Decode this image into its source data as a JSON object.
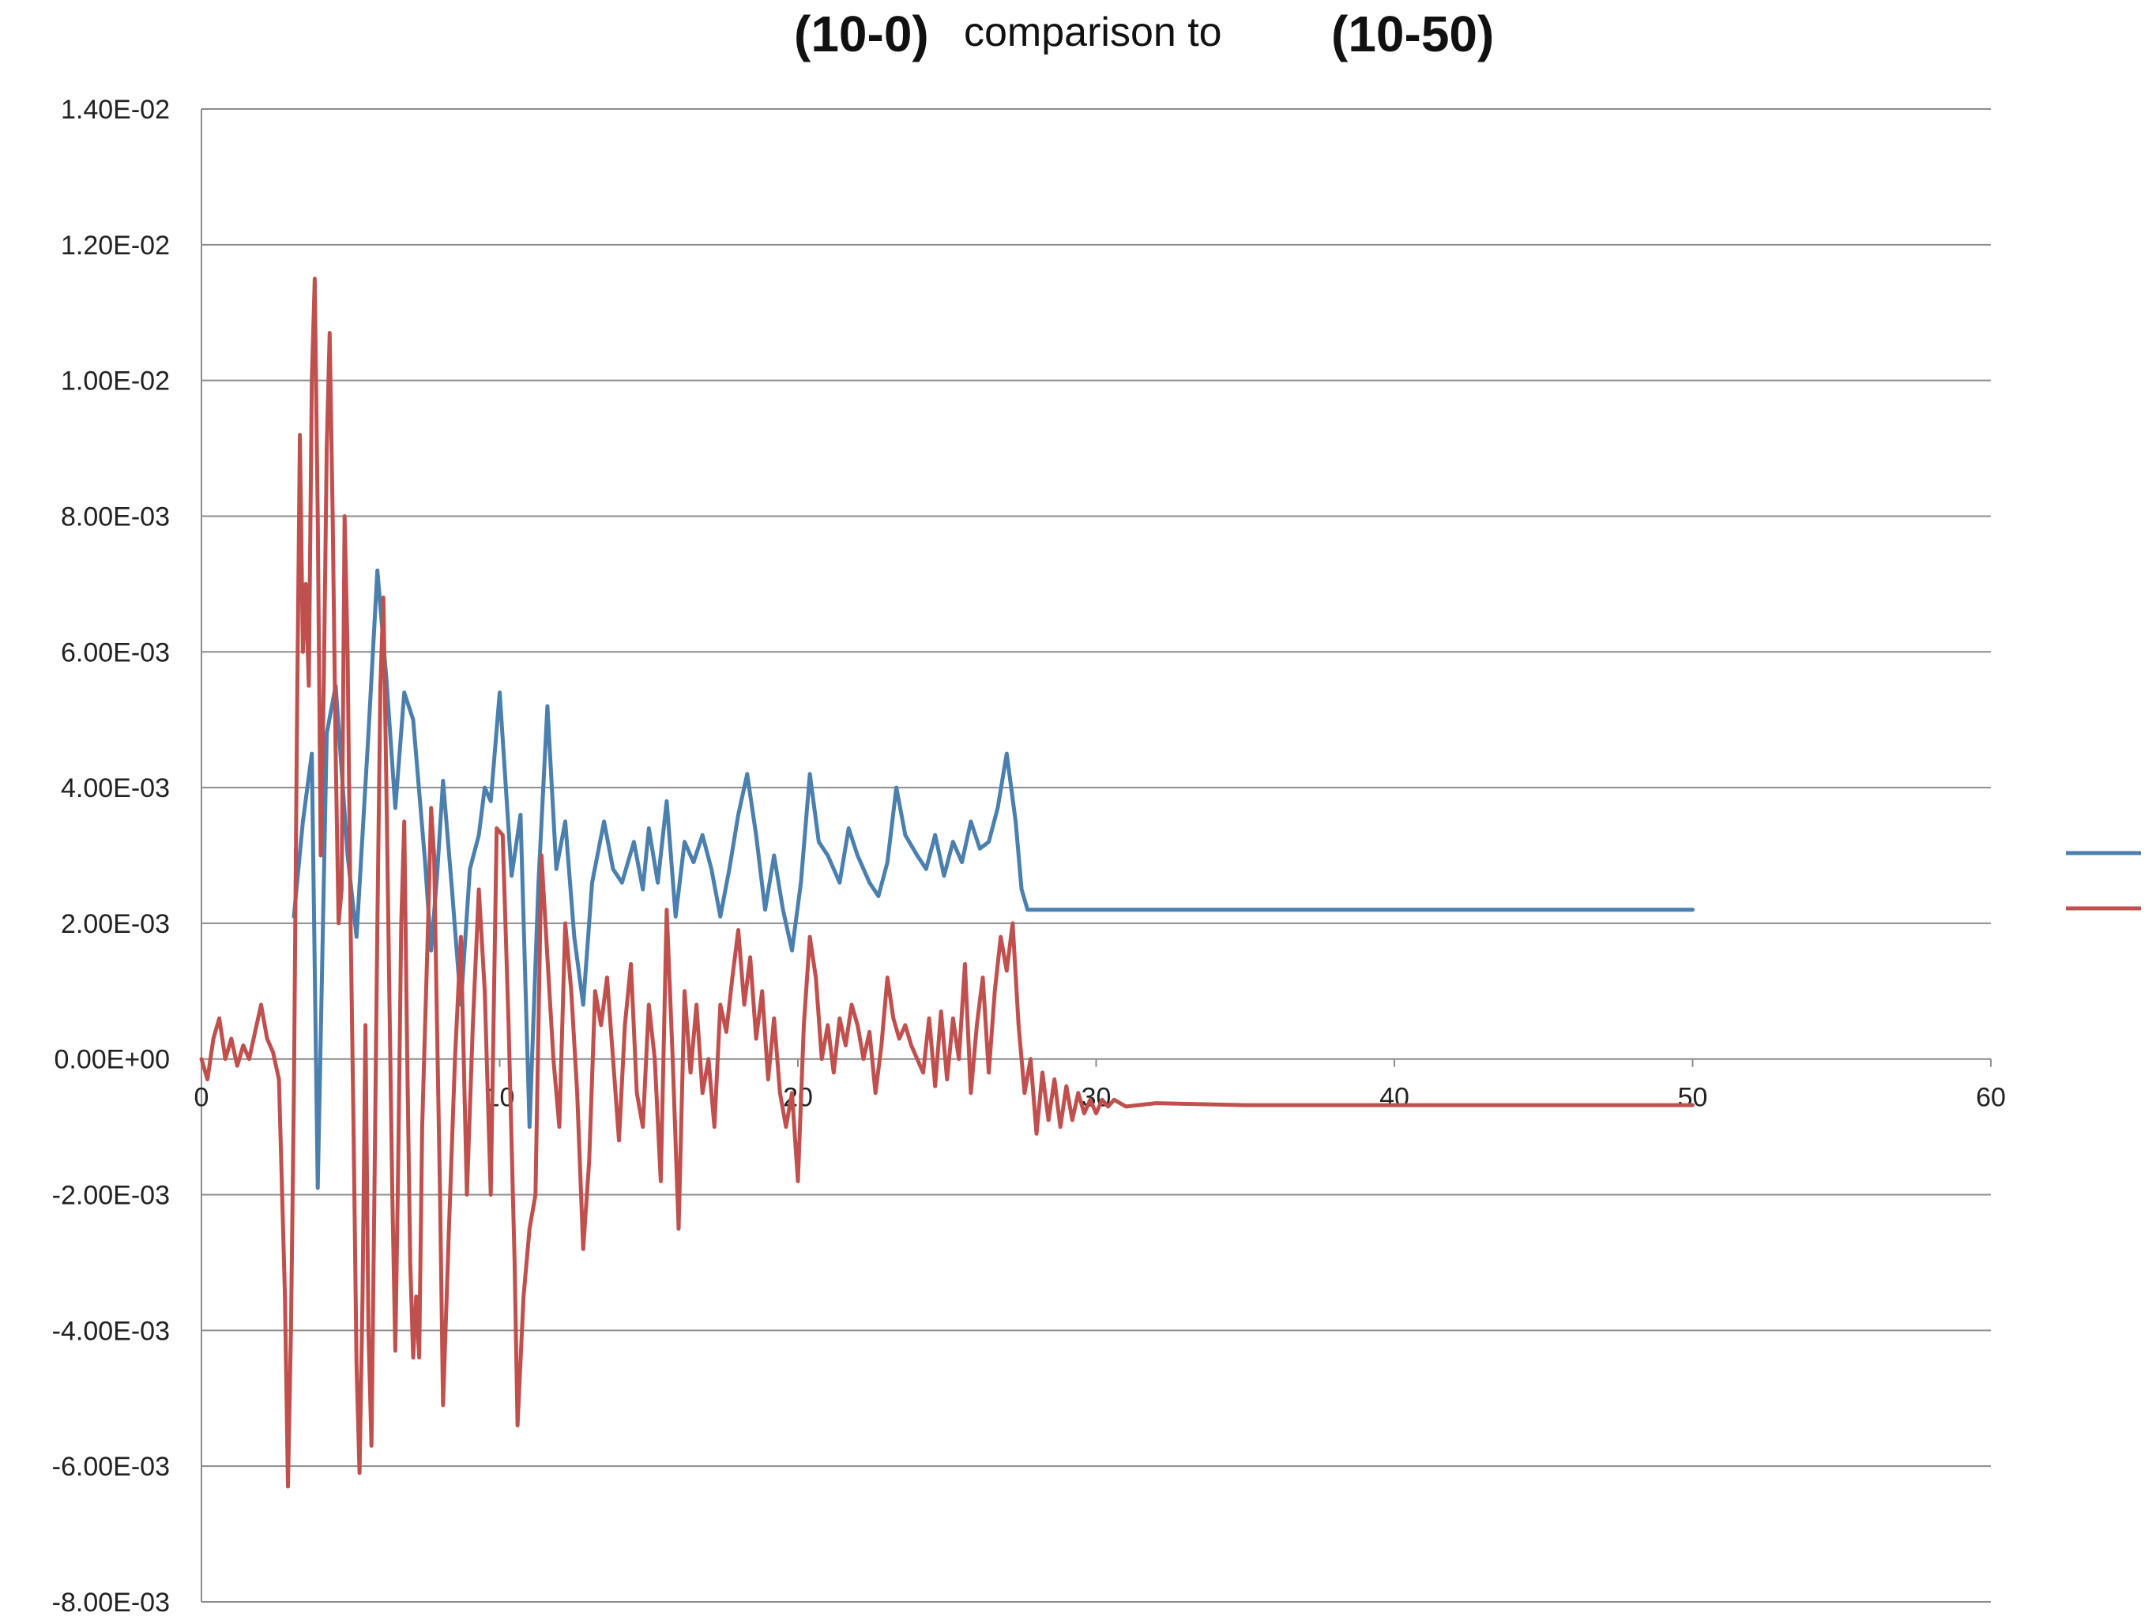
{
  "chart_data": {
    "type": "line",
    "title": {
      "part1": "(10-0)",
      "part2": "comparison to",
      "part3": "(10-50)"
    },
    "xlim": [
      0,
      60
    ],
    "ylim": [
      -0.008,
      0.014
    ],
    "x_ticks": [
      "0",
      "10",
      "20",
      "30",
      "40",
      "50",
      "60"
    ],
    "y_ticks": [
      "1.40E-02",
      "1.20E-02",
      "1.00E-02",
      "8.00E-03",
      "6.00E-03",
      "4.00E-03",
      "2.00E-03",
      "0.00E+00",
      "-2.00E-03",
      "-4.00E-03",
      "-6.00E-03",
      "-8.00E-03"
    ],
    "grid": "horizontal",
    "legend": "right",
    "series": [
      {
        "color": "#4a7fae",
        "points": [
          [
            3.1,
            0.0021
          ],
          [
            3.4,
            0.0035
          ],
          [
            3.7,
            0.0045
          ],
          [
            3.9,
            -0.0019
          ],
          [
            4.2,
            0.0048
          ],
          [
            4.5,
            0.0055
          ],
          [
            4.9,
            0.003
          ],
          [
            5.2,
            0.0018
          ],
          [
            5.6,
            0.0048
          ],
          [
            5.9,
            0.0072
          ],
          [
            6.2,
            0.0056
          ],
          [
            6.5,
            0.0037
          ],
          [
            6.8,
            0.0054
          ],
          [
            7.1,
            0.005
          ],
          [
            7.5,
            0.0029
          ],
          [
            7.7,
            0.0016
          ],
          [
            7.9,
            0.0027
          ],
          [
            8.1,
            0.0041
          ],
          [
            8.4,
            0.0025
          ],
          [
            8.7,
            0.0008
          ],
          [
            9.0,
            0.0028
          ],
          [
            9.3,
            0.0033
          ],
          [
            9.5,
            0.004
          ],
          [
            9.7,
            0.0038
          ],
          [
            10.0,
            0.0054
          ],
          [
            10.4,
            0.0027
          ],
          [
            10.7,
            0.0036
          ],
          [
            11.0,
            -0.001
          ],
          [
            11.3,
            0.0026
          ],
          [
            11.6,
            0.0052
          ],
          [
            11.9,
            0.0028
          ],
          [
            12.2,
            0.0035
          ],
          [
            12.5,
            0.0018
          ],
          [
            12.8,
            0.0008
          ],
          [
            13.1,
            0.0026
          ],
          [
            13.5,
            0.0035
          ],
          [
            13.8,
            0.0028
          ],
          [
            14.1,
            0.0026
          ],
          [
            14.5,
            0.0032
          ],
          [
            14.8,
            0.0025
          ],
          [
            15.0,
            0.0034
          ],
          [
            15.3,
            0.0026
          ],
          [
            15.6,
            0.0038
          ],
          [
            15.9,
            0.0021
          ],
          [
            16.2,
            0.0032
          ],
          [
            16.5,
            0.0029
          ],
          [
            16.8,
            0.0033
          ],
          [
            17.1,
            0.0028
          ],
          [
            17.4,
            0.0021
          ],
          [
            17.7,
            0.0028
          ],
          [
            18.0,
            0.0036
          ],
          [
            18.3,
            0.0042
          ],
          [
            18.6,
            0.0033
          ],
          [
            18.9,
            0.0022
          ],
          [
            19.2,
            0.003
          ],
          [
            19.5,
            0.0022
          ],
          [
            19.8,
            0.0016
          ],
          [
            20.1,
            0.0026
          ],
          [
            20.4,
            0.0042
          ],
          [
            20.7,
            0.0032
          ],
          [
            21.0,
            0.003
          ],
          [
            21.4,
            0.0026
          ],
          [
            21.7,
            0.0034
          ],
          [
            22.0,
            0.003
          ],
          [
            22.4,
            0.0026
          ],
          [
            22.7,
            0.0024
          ],
          [
            23.0,
            0.0029
          ],
          [
            23.3,
            0.004
          ],
          [
            23.6,
            0.0033
          ],
          [
            24.0,
            0.003
          ],
          [
            24.3,
            0.0028
          ],
          [
            24.6,
            0.0033
          ],
          [
            24.9,
            0.0027
          ],
          [
            25.2,
            0.0032
          ],
          [
            25.5,
            0.0029
          ],
          [
            25.8,
            0.0035
          ],
          [
            26.1,
            0.0031
          ],
          [
            26.4,
            0.0032
          ],
          [
            26.7,
            0.0037
          ],
          [
            27.0,
            0.0045
          ],
          [
            27.3,
            0.0035
          ],
          [
            27.5,
            0.0025
          ],
          [
            27.7,
            0.0022
          ],
          [
            28.0,
            0.0022
          ],
          [
            30.0,
            0.0022
          ],
          [
            40.0,
            0.0022
          ],
          [
            50.0,
            0.0022
          ]
        ]
      },
      {
        "color": "#c0504d",
        "points": [
          [
            0.0,
            0.0
          ],
          [
            0.2,
            -0.0003
          ],
          [
            0.4,
            0.0003
          ],
          [
            0.6,
            0.0006
          ],
          [
            0.8,
            0.0
          ],
          [
            1.0,
            0.0003
          ],
          [
            1.2,
            -0.0001
          ],
          [
            1.4,
            0.0002
          ],
          [
            1.6,
            0.0
          ],
          [
            1.8,
            0.0004
          ],
          [
            2.0,
            0.0008
          ],
          [
            2.2,
            0.0003
          ],
          [
            2.4,
            0.0001
          ],
          [
            2.6,
            -0.0003
          ],
          [
            2.8,
            -0.0035
          ],
          [
            2.9,
            -0.0063
          ],
          [
            3.0,
            -0.004
          ],
          [
            3.1,
            -0.0005
          ],
          [
            3.2,
            0.0048
          ],
          [
            3.3,
            0.0092
          ],
          [
            3.4,
            0.006
          ],
          [
            3.5,
            0.007
          ],
          [
            3.6,
            0.0055
          ],
          [
            3.7,
            0.01
          ],
          [
            3.8,
            0.0115
          ],
          [
            3.9,
            0.008
          ],
          [
            4.0,
            0.003
          ],
          [
            4.1,
            0.0055
          ],
          [
            4.2,
            0.009
          ],
          [
            4.3,
            0.0107
          ],
          [
            4.4,
            0.008
          ],
          [
            4.5,
            0.0045
          ],
          [
            4.6,
            0.002
          ],
          [
            4.7,
            0.0025
          ],
          [
            4.8,
            0.008
          ],
          [
            4.9,
            0.006
          ],
          [
            5.0,
            0.002
          ],
          [
            5.1,
            -0.001
          ],
          [
            5.2,
            -0.0045
          ],
          [
            5.3,
            -0.0061
          ],
          [
            5.4,
            -0.0035
          ],
          [
            5.5,
            0.0005
          ],
          [
            5.6,
            -0.004
          ],
          [
            5.7,
            -0.0057
          ],
          [
            5.8,
            -0.002
          ],
          [
            5.9,
            0.002
          ],
          [
            6.0,
            0.0055
          ],
          [
            6.1,
            0.0068
          ],
          [
            6.2,
            0.004
          ],
          [
            6.3,
            0.001
          ],
          [
            6.4,
            -0.002
          ],
          [
            6.5,
            -0.0043
          ],
          [
            6.6,
            -0.0015
          ],
          [
            6.7,
            0.002
          ],
          [
            6.8,
            0.0035
          ],
          [
            6.9,
            0.0
          ],
          [
            7.0,
            -0.003
          ],
          [
            7.1,
            -0.0044
          ],
          [
            7.2,
            -0.0035
          ],
          [
            7.3,
            -0.0044
          ],
          [
            7.4,
            -0.001
          ],
          [
            7.5,
            0.0005
          ],
          [
            7.6,
            0.002
          ],
          [
            7.7,
            0.0037
          ],
          [
            7.8,
            0.003
          ],
          [
            7.9,
            0.0005
          ],
          [
            8.0,
            -0.002
          ],
          [
            8.1,
            -0.0051
          ],
          [
            8.3,
            -0.0025
          ],
          [
            8.5,
            0.0
          ],
          [
            8.7,
            0.0018
          ],
          [
            8.9,
            -0.002
          ],
          [
            9.1,
            0.0005
          ],
          [
            9.3,
            0.0025
          ],
          [
            9.5,
            0.001
          ],
          [
            9.7,
            -0.002
          ],
          [
            9.9,
            0.0034
          ],
          [
            10.1,
            0.0033
          ],
          [
            10.3,
            0.0005
          ],
          [
            10.5,
            -0.003
          ],
          [
            10.6,
            -0.0054
          ],
          [
            10.8,
            -0.0035
          ],
          [
            11.0,
            -0.0025
          ],
          [
            11.2,
            -0.002
          ],
          [
            11.4,
            0.003
          ],
          [
            11.6,
            0.0015
          ],
          [
            11.8,
            0.0
          ],
          [
            12.0,
            -0.001
          ],
          [
            12.2,
            0.002
          ],
          [
            12.4,
            0.001
          ],
          [
            12.6,
            -0.0005
          ],
          [
            12.8,
            -0.0028
          ],
          [
            13.0,
            -0.0015
          ],
          [
            13.2,
            0.001
          ],
          [
            13.4,
            0.0005
          ],
          [
            13.6,
            0.0012
          ],
          [
            13.8,
            0.0
          ],
          [
            14.0,
            -0.0012
          ],
          [
            14.2,
            0.0005
          ],
          [
            14.4,
            0.0014
          ],
          [
            14.6,
            -0.0005
          ],
          [
            14.8,
            -0.001
          ],
          [
            15.0,
            0.0008
          ],
          [
            15.2,
            0.0
          ],
          [
            15.4,
            -0.0018
          ],
          [
            15.6,
            0.0022
          ],
          [
            15.8,
            0.0
          ],
          [
            16.0,
            -0.0025
          ],
          [
            16.2,
            0.001
          ],
          [
            16.4,
            -0.0002
          ],
          [
            16.6,
            0.0008
          ],
          [
            16.8,
            -0.0005
          ],
          [
            17.0,
            0.0
          ],
          [
            17.2,
            -0.001
          ],
          [
            17.4,
            0.0008
          ],
          [
            17.6,
            0.0004
          ],
          [
            17.8,
            0.0012
          ],
          [
            18.0,
            0.0019
          ],
          [
            18.2,
            0.0008
          ],
          [
            18.4,
            0.0015
          ],
          [
            18.6,
            0.0003
          ],
          [
            18.8,
            0.001
          ],
          [
            19.0,
            -0.0003
          ],
          [
            19.2,
            0.0006
          ],
          [
            19.4,
            -0.0005
          ],
          [
            19.6,
            -0.001
          ],
          [
            19.8,
            -0.0005
          ],
          [
            20.0,
            -0.0018
          ],
          [
            20.2,
            0.0005
          ],
          [
            20.4,
            0.0018
          ],
          [
            20.6,
            0.0012
          ],
          [
            20.8,
            0.0
          ],
          [
            21.0,
            0.0005
          ],
          [
            21.2,
            -0.0002
          ],
          [
            21.4,
            0.0006
          ],
          [
            21.6,
            0.0002
          ],
          [
            21.8,
            0.0008
          ],
          [
            22.0,
            0.0005
          ],
          [
            22.2,
            0.0
          ],
          [
            22.4,
            0.0004
          ],
          [
            22.6,
            -0.0005
          ],
          [
            22.8,
            0.0002
          ],
          [
            23.0,
            0.0012
          ],
          [
            23.2,
            0.0006
          ],
          [
            23.4,
            0.0003
          ],
          [
            23.6,
            0.0005
          ],
          [
            23.8,
            0.0002
          ],
          [
            24.0,
            0.0
          ],
          [
            24.2,
            -0.0002
          ],
          [
            24.4,
            0.0006
          ],
          [
            24.6,
            -0.0004
          ],
          [
            24.8,
            0.0007
          ],
          [
            25.0,
            -0.0003
          ],
          [
            25.2,
            0.0006
          ],
          [
            25.4,
            0.0
          ],
          [
            25.6,
            0.0014
          ],
          [
            25.8,
            -0.0005
          ],
          [
            26.0,
            0.0005
          ],
          [
            26.2,
            0.0012
          ],
          [
            26.4,
            -0.0002
          ],
          [
            26.6,
            0.001
          ],
          [
            26.8,
            0.0018
          ],
          [
            27.0,
            0.0013
          ],
          [
            27.2,
            0.002
          ],
          [
            27.4,
            0.0005
          ],
          [
            27.6,
            -0.0005
          ],
          [
            27.8,
            0.0
          ],
          [
            28.0,
            -0.0011
          ],
          [
            28.2,
            -0.0002
          ],
          [
            28.4,
            -0.0009
          ],
          [
            28.6,
            -0.0003
          ],
          [
            28.8,
            -0.001
          ],
          [
            29.0,
            -0.0004
          ],
          [
            29.2,
            -0.0009
          ],
          [
            29.4,
            -0.0005
          ],
          [
            29.6,
            -0.0008
          ],
          [
            29.8,
            -0.0006
          ],
          [
            30.0,
            -0.0008
          ],
          [
            30.2,
            -0.0006
          ],
          [
            30.4,
            -0.0007
          ],
          [
            30.6,
            -0.0006
          ],
          [
            31.0,
            -0.0007
          ],
          [
            32.0,
            -0.00065
          ],
          [
            35.0,
            -0.00068
          ],
          [
            40.0,
            -0.00068
          ],
          [
            45.0,
            -0.00068
          ],
          [
            50.0,
            -0.00068
          ]
        ]
      }
    ]
  }
}
